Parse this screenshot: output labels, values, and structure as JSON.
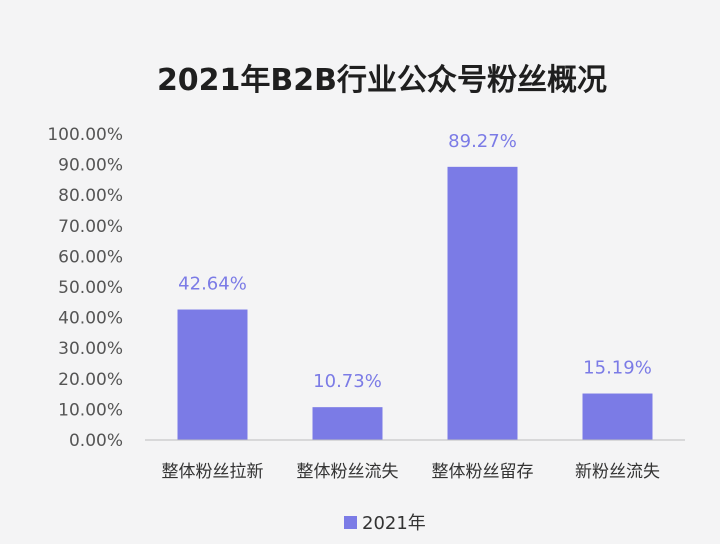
{
  "chart_data": {
    "type": "bar",
    "title": "2021年B2B行业公众号粉丝概况",
    "xlabel": "",
    "ylabel": "",
    "categories": [
      "整体粉丝拉新",
      "整体粉丝流失",
      "整体粉丝留存",
      "新粉丝流失"
    ],
    "series": [
      {
        "name": "2021年",
        "values": [
          42.64,
          10.73,
          89.27,
          15.19
        ],
        "labels": [
          "42.64%",
          "10.73%",
          "89.27%",
          "15.19%"
        ]
      }
    ],
    "ylim": [
      0,
      100
    ],
    "yticks": [
      "0.00%",
      "10.00%",
      "20.00%",
      "30.00%",
      "40.00%",
      "50.00%",
      "60.00%",
      "70.00%",
      "80.00%",
      "90.00%",
      "100.00%"
    ],
    "grid": false,
    "legend_position": "bottom",
    "colors": {
      "bar": "#7b7be6",
      "data_label": "#7b7be6",
      "axis": "#bdbdbd",
      "background": "#f4f4f5"
    }
  }
}
